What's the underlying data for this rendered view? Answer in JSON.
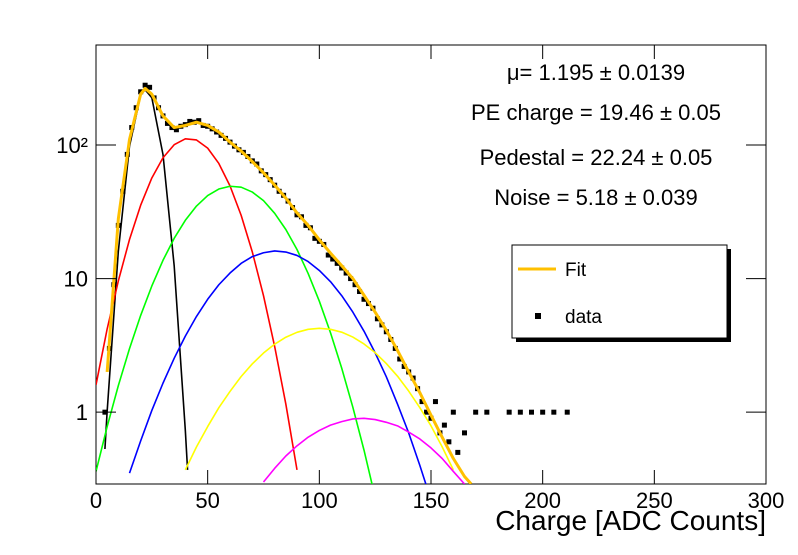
{
  "chart_data": {
    "type": "line",
    "xlabel": "Charge [ADC Counts]",
    "xlim": [
      0,
      300
    ],
    "xticks": [
      0,
      50,
      100,
      150,
      200,
      250,
      300
    ],
    "ylim": [
      0.29,
      560
    ],
    "yticks": [
      1,
      10,
      {
        "value": 100,
        "label": "10²"
      }
    ],
    "ylog": true,
    "annotations": [
      "μ= 1.195 ± 0.0139",
      "PE charge = 19.46 ± 0.05",
      "Pedestal = 22.24 ± 0.05",
      "Noise = 5.18 ± 0.039"
    ],
    "series": [
      {
        "color": "#000000",
        "mode": "line",
        "x": [
          4,
          5,
          10,
          15,
          20,
          22,
          25,
          30,
          35,
          40,
          41
        ],
        "values": [
          0.53,
          1.02,
          16.0,
          97.9,
          236.8,
          259,
          225.6,
          84.7,
          12.5,
          0.73,
          0.37
        ]
      },
      {
        "color": "#ff0000",
        "mode": "line",
        "x": [
          0,
          5,
          10,
          15,
          20,
          25,
          30,
          35,
          40,
          45,
          50,
          55,
          60,
          65,
          70,
          75,
          80,
          85,
          90
        ],
        "values": [
          1.6,
          4.2,
          9.6,
          19.6,
          35.4,
          56.6,
          80.2,
          100.4,
          111.2,
          109,
          94.7,
          72.7,
          49.4,
          29.7,
          15.8,
          7.45,
          3.1,
          1.15,
          0.37
        ]
      },
      {
        "color": "#00ff00",
        "mode": "line",
        "x": [
          0,
          5,
          10,
          15,
          20,
          25,
          30,
          35,
          40,
          45,
          50,
          55,
          60,
          65,
          70,
          75,
          80,
          85,
          90,
          95,
          100,
          105,
          110,
          115,
          120,
          125
        ],
        "values": [
          0.36,
          0.78,
          1.58,
          2.99,
          5.3,
          8.8,
          13.7,
          20.0,
          27.3,
          34.9,
          41.8,
          46.8,
          49.1,
          48.3,
          44.4,
          38.3,
          30.8,
          23.3,
          16.5,
          10.9,
          6.77,
          3.93,
          2.14,
          1.09,
          0.52,
          0.23
        ]
      },
      {
        "color": "#0000ff",
        "mode": "line",
        "x": [
          15,
          20,
          25,
          30,
          35,
          40,
          45,
          50,
          55,
          60,
          65,
          70,
          75,
          80,
          85,
          90,
          95,
          100,
          105,
          110,
          115,
          120,
          125,
          130,
          135,
          140,
          145,
          150
        ],
        "values": [
          0.35,
          0.61,
          1.03,
          1.65,
          2.53,
          3.71,
          5.21,
          7.0,
          8.99,
          11.0,
          13.0,
          14.6,
          15.6,
          16.1,
          15.8,
          14.9,
          13.4,
          11.5,
          9.48,
          7.46,
          5.61,
          4.04,
          2.78,
          1.84,
          1.15,
          0.7,
          0.4,
          0.22
        ]
      },
      {
        "color": "#ffff00",
        "mode": "line",
        "x": [
          40,
          45,
          50,
          55,
          60,
          65,
          70,
          75,
          80,
          85,
          90,
          95,
          100,
          105,
          110,
          115,
          120,
          125,
          130,
          135,
          140,
          145,
          150,
          155,
          160
        ],
        "values": [
          0.37,
          0.55,
          0.78,
          1.08,
          1.43,
          1.85,
          2.3,
          2.77,
          3.23,
          3.64,
          3.96,
          4.17,
          4.24,
          4.17,
          3.97,
          3.65,
          3.24,
          2.79,
          2.31,
          1.86,
          1.44,
          1.08,
          0.79,
          0.55,
          0.37
        ]
      },
      {
        "color": "#ff00ff",
        "mode": "line",
        "x": [
          75,
          80,
          85,
          90,
          95,
          100,
          105,
          110,
          115,
          120,
          125,
          130,
          135,
          140,
          145,
          150,
          155,
          160,
          165
        ],
        "values": [
          0.3,
          0.38,
          0.47,
          0.56,
          0.65,
          0.73,
          0.8,
          0.85,
          0.89,
          0.9,
          0.88,
          0.84,
          0.79,
          0.71,
          0.63,
          0.54,
          0.45,
          0.36,
          0.29
        ]
      },
      {
        "name": "Fit",
        "color": "#ffc000",
        "mode": "line",
        "x": [
          5,
          10,
          15,
          20,
          22,
          25,
          30,
          35,
          40,
          45,
          50,
          55,
          60,
          65,
          70,
          75,
          80,
          85,
          90,
          95,
          100,
          105,
          110,
          115,
          120,
          125,
          130,
          135,
          140,
          145,
          150,
          155,
          160,
          165,
          168
        ],
        "values": [
          2,
          28,
          110,
          240,
          265,
          240,
          165,
          135,
          140,
          148,
          140,
          125,
          105,
          90,
          75,
          62,
          50,
          40,
          31,
          25,
          19.5,
          15.5,
          12.5,
          10,
          7.5,
          5.6,
          4.1,
          2.9,
          2.0,
          1.4,
          0.95,
          0.65,
          0.45,
          0.33,
          0.29
        ]
      },
      {
        "name": "data",
        "color": "#000000",
        "mode": "markers",
        "x": [
          4,
          6,
          8,
          10,
          12,
          14,
          16,
          18,
          20,
          22,
          24,
          26,
          28,
          30,
          32,
          34,
          36,
          38,
          40,
          42,
          44,
          46,
          48,
          50,
          52,
          54,
          56,
          58,
          60,
          62,
          64,
          66,
          68,
          70,
          72,
          74,
          76,
          78,
          80,
          82,
          84,
          86,
          88,
          90,
          92,
          94,
          96,
          98,
          100,
          102,
          104,
          106,
          108,
          110,
          112,
          114,
          116,
          118,
          120,
          122,
          124,
          126,
          128,
          130,
          132,
          134,
          136,
          138,
          140,
          142,
          144,
          146,
          148,
          150,
          152,
          154,
          156,
          158,
          160,
          162,
          165,
          170,
          175,
          185,
          190,
          195,
          200,
          205,
          211
        ],
        "values": [
          1,
          3,
          9,
          25,
          45,
          85,
          135,
          190,
          250,
          280,
          270,
          225,
          190,
          165,
          145,
          135,
          130,
          138,
          142,
          150,
          148,
          152,
          140,
          138,
          132,
          125,
          118,
          112,
          105,
          98,
          92,
          88,
          82,
          76,
          72,
          64,
          60,
          55,
          50,
          45,
          42,
          38,
          34,
          30,
          29,
          25,
          24,
          20,
          19,
          18,
          15,
          14,
          13,
          12,
          11,
          10,
          9,
          8,
          7,
          6.5,
          6,
          5,
          4.5,
          4,
          3.5,
          3,
          2.5,
          2.2,
          2,
          1.8,
          1.5,
          1.2,
          1,
          0.9,
          1.2,
          0.7,
          0.8,
          0.6,
          1,
          0.5,
          0.7,
          1,
          1,
          1,
          1,
          1,
          1,
          1,
          1
        ]
      }
    ]
  }
}
